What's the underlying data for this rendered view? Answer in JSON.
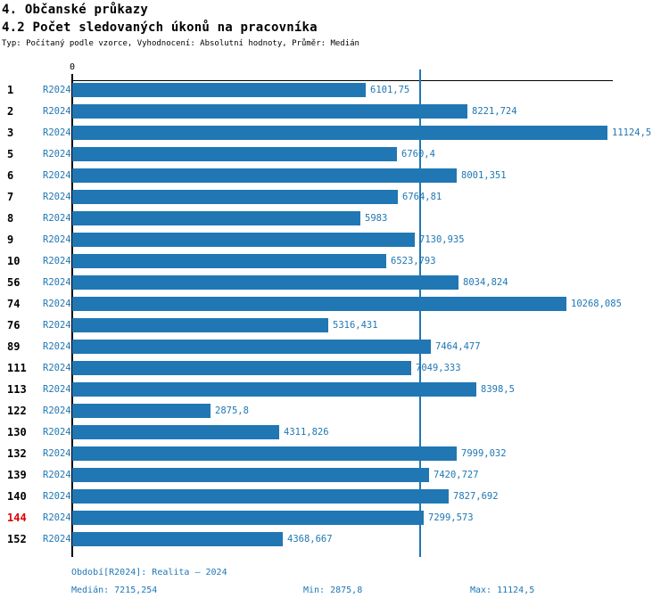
{
  "header": {
    "title_line1": "4. Občanské průkazy",
    "title_line2": "4.2 Počet sledovaných úkonů na pracovníka",
    "subtitle": "Typ: Počítaný podle vzorce, Vyhodnocení: Absolutní hodnoty, Průměr: Medián"
  },
  "axis": {
    "zero_label": "0"
  },
  "colors": {
    "bar_blue": "#2077b4",
    "highlight_red": "#dd0000",
    "axis_black": "#000000"
  },
  "chart_data": {
    "type": "bar",
    "orientation": "horizontal",
    "title": "4.2 Počet sledovaných úkonů na pracovníka",
    "xlabel": "",
    "ylabel": "",
    "grid": false,
    "xlim": [
      0,
      11240
    ],
    "series_label": "R2024",
    "categories": [
      "1",
      "2",
      "3",
      "5",
      "6",
      "7",
      "8",
      "9",
      "10",
      "56",
      "74",
      "76",
      "89",
      "111",
      "113",
      "122",
      "130",
      "132",
      "139",
      "140",
      "144",
      "152"
    ],
    "values": [
      6101.75,
      8221.724,
      11124.5,
      6760.4,
      8001.351,
      6764.81,
      5983,
      7130.935,
      6523.793,
      8034.824,
      10268.085,
      5316.431,
      7464.477,
      7049.333,
      8398.5,
      2875.8,
      4311.826,
      7999.032,
      7420.727,
      7827.692,
      7299.573,
      4368.667
    ],
    "value_labels": [
      "6101,75",
      "8221,724",
      "11124,5",
      "6760,4",
      "8001,351",
      "6764,81",
      "5983",
      "7130,935",
      "6523,793",
      "8034,824",
      "10268,085",
      "5316,431",
      "7464,477",
      "7049,333",
      "8398,5",
      "2875,8",
      "4311,826",
      "7999,032",
      "7420,727",
      "7827,692",
      "7299,573",
      "4368,667"
    ],
    "highlighted_categories": [
      "144"
    ],
    "median": 7215.254,
    "median_line": true,
    "min": 2875.8,
    "max": 11124.5
  },
  "footer": {
    "period": "Období[R2024]: Realita – 2024",
    "median": "Medián: 7215,254",
    "min": "Min: 2875,8",
    "max": "Max: 11124,5"
  }
}
